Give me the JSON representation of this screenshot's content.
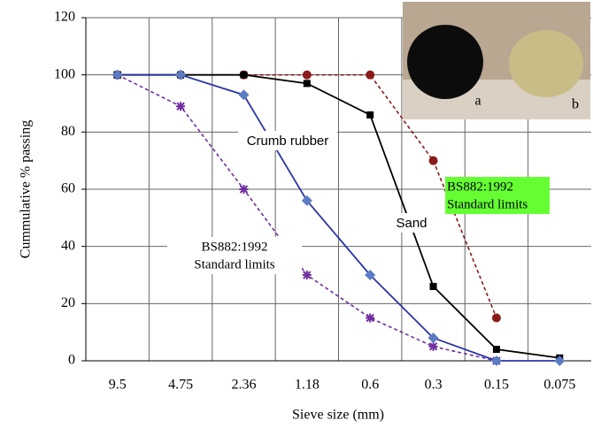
{
  "chart_data": {
    "type": "line",
    "x_label": "Sieve size (mm)",
    "y_label": "Cummulative % passing",
    "categories": [
      "9.5",
      "4.75",
      "2.36",
      "1.18",
      "0.6",
      "0.3",
      "0.15",
      "0.075"
    ],
    "series": [
      {
        "color": "#8b1a1a",
        "marker": "circle",
        "dashed": true,
        "values": [
          100,
          100,
          100,
          100,
          100,
          70,
          15,
          null
        ]
      },
      {
        "color": "#7030a0",
        "marker": "asterisk",
        "dashed": true,
        "values": [
          100,
          89,
          60,
          30,
          15,
          5,
          0,
          null
        ]
      },
      {
        "color": "#000000",
        "marker": "square",
        "dashed": false,
        "values": [
          100,
          100,
          100,
          97,
          86,
          26,
          4,
          1
        ]
      },
      {
        "color": "#2a36a8",
        "marker": "diamond",
        "dashed": false,
        "values": [
          100,
          100,
          93,
          56,
          30,
          8,
          0,
          0
        ]
      }
    ],
    "ylim": [
      0,
      120
    ],
    "yticks": [
      0,
      20,
      40,
      60,
      80,
      100,
      120
    ],
    "grid": true,
    "annotations": [
      {
        "lines": [
          "Crumb rubber"
        ]
      },
      {
        "lines": [
          "Sand"
        ]
      },
      {
        "lines": [
          "BS882:1992",
          "Standard   limits"
        ]
      },
      {
        "lines": [
          "BS882:1992",
          "Standard   limits"
        ]
      }
    ],
    "photo_labels": [
      "a",
      "b"
    ]
  }
}
